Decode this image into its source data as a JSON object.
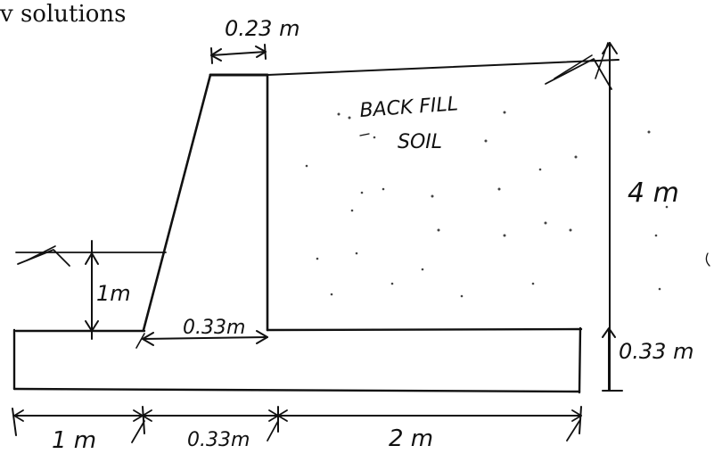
{
  "header": {
    "text": "v solutions"
  },
  "labels": {
    "top_width": "0.23 m",
    "backfill_line1": "BACK FILL",
    "backfill_line2": "SOIL",
    "height": "4 m",
    "front_depth": "1m",
    "stem_base": "0.33m",
    "base_thickness": "0.33 m",
    "toe_length": "1 m",
    "stem_bottom": "0.33m",
    "heel_length": "2 m"
  },
  "colors": {
    "ink": "#111111",
    "paper": "#ffffff"
  }
}
